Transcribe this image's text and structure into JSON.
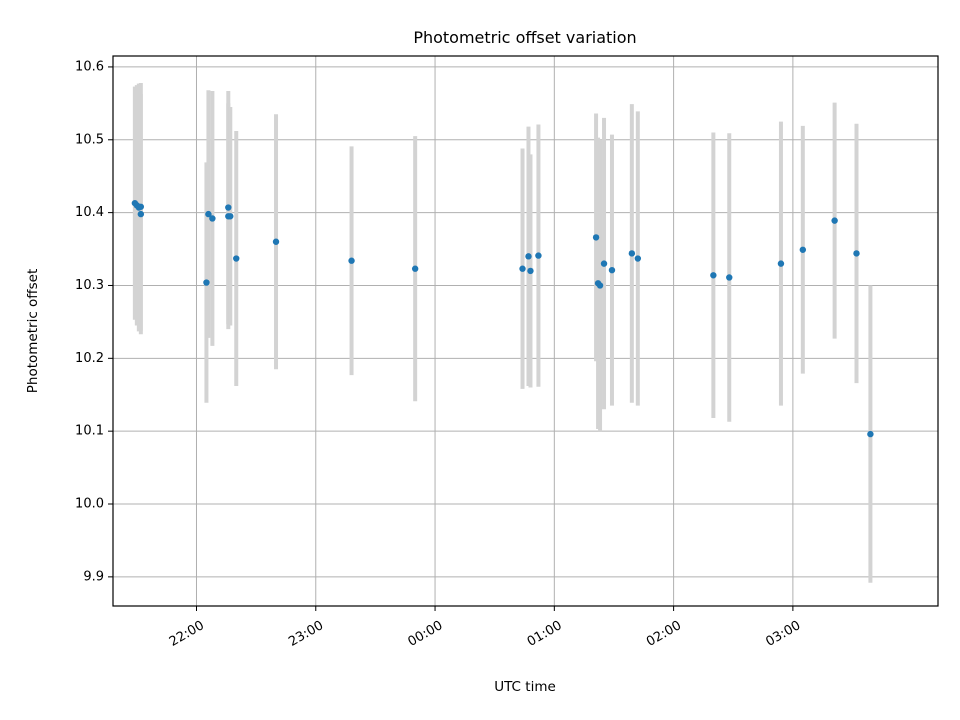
{
  "chart_data": {
    "type": "scatter",
    "title": "Photometric offset variation",
    "xlabel": "UTC time",
    "ylabel": "Photometric offset",
    "xlim": [
      "21:18",
      "28:13"
    ],
    "ylim": [
      9.86,
      10.615
    ],
    "xticks": [
      "22:00",
      "23:00",
      "00:00",
      "01:00",
      "02:00",
      "03:00"
    ],
    "yticks": [
      "9.9",
      "10.0",
      "10.1",
      "10.2",
      "10.3",
      "10.4",
      "10.5",
      "10.6"
    ],
    "grid": true,
    "colors": {
      "point": "#1f77b4",
      "errorbar": "#d3d3d3",
      "grid": "#b0b0b0"
    },
    "series": [
      {
        "points": [
          {
            "x": "21:29",
            "y": 10.413,
            "err": 0.16
          },
          {
            "x": "21:30",
            "y": 10.41,
            "err": 0.165
          },
          {
            "x": "21:31",
            "y": 10.407,
            "err": 0.17
          },
          {
            "x": "21:32",
            "y": 10.398,
            "err": 0.165
          },
          {
            "x": "21:32",
            "y": 10.408,
            "err": 0.17
          },
          {
            "x": "22:05",
            "y": 10.304,
            "err": 0.165
          },
          {
            "x": "22:06",
            "y": 10.398,
            "err": 0.17
          },
          {
            "x": "22:08",
            "y": 10.392,
            "err": 0.175
          },
          {
            "x": "22:16",
            "y": 10.407,
            "err": 0.16
          },
          {
            "x": "22:16",
            "y": 10.395,
            "err": 0.155
          },
          {
            "x": "22:17",
            "y": 10.395,
            "err": 0.15
          },
          {
            "x": "22:20",
            "y": 10.337,
            "err": 0.175
          },
          {
            "x": "22:40",
            "y": 10.36,
            "err": 0.175
          },
          {
            "x": "23:18",
            "y": 10.334,
            "err": 0.157
          },
          {
            "x": "23:50",
            "y": 10.323,
            "err": 0.182
          },
          {
            "x": "00:44",
            "y": 10.323,
            "err": 0.165
          },
          {
            "x": "00:47",
            "y": 10.34,
            "err": 0.178
          },
          {
            "x": "00:48",
            "y": 10.32,
            "err": 0.16
          },
          {
            "x": "00:52",
            "y": 10.341,
            "err": 0.18
          },
          {
            "x": "01:21",
            "y": 10.366,
            "err": 0.17
          },
          {
            "x": "01:22",
            "y": 10.303,
            "err": 0.2
          },
          {
            "x": "01:23",
            "y": 10.3,
            "err": 0.2
          },
          {
            "x": "01:25",
            "y": 10.33,
            "err": 0.2
          },
          {
            "x": "01:29",
            "y": 10.321,
            "err": 0.186
          },
          {
            "x": "01:39",
            "y": 10.344,
            "err": 0.205
          },
          {
            "x": "01:42",
            "y": 10.337,
            "err": 0.202
          },
          {
            "x": "02:20",
            "y": 10.314,
            "err": 0.196
          },
          {
            "x": "02:28",
            "y": 10.311,
            "err": 0.198
          },
          {
            "x": "02:54",
            "y": 10.33,
            "err": 0.195
          },
          {
            "x": "03:05",
            "y": 10.349,
            "err": 0.17
          },
          {
            "x": "03:21",
            "y": 10.389,
            "err": 0.162
          },
          {
            "x": "03:32",
            "y": 10.344,
            "err": 0.178
          },
          {
            "x": "03:39",
            "y": 10.096,
            "err": 0.204
          }
        ]
      }
    ]
  }
}
